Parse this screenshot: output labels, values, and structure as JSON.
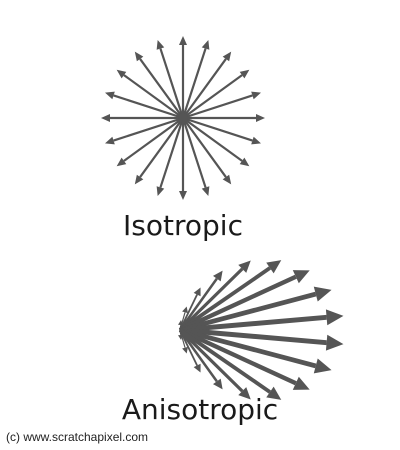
{
  "labels": {
    "isotropic": "Isotropic",
    "anisotropic": "Anisotropic"
  },
  "credit": "(c) www.scratchapixel.com",
  "colors": {
    "arrow": "#555555",
    "text": "#1a1a1a",
    "background": "#ffffff"
  },
  "isotropic": {
    "arrow_count": 20
  },
  "anisotropic": {
    "arrow_count": 18
  }
}
